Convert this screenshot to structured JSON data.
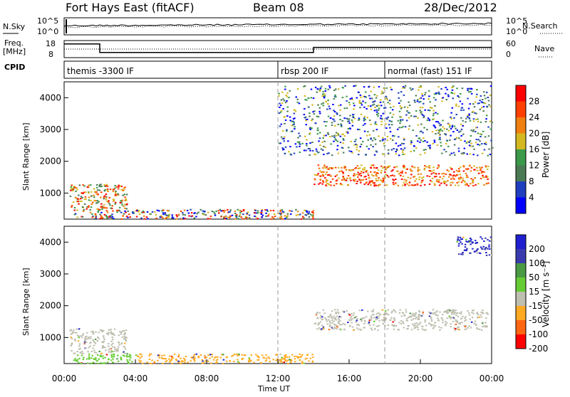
{
  "header": {
    "title": "Fort Hays East (fitACF)",
    "beam": "Beam 08",
    "date": "28/Dec/2012"
  },
  "panel_labels": {
    "nsky": "N.Sky",
    "nsearch": "N.Search",
    "freq_line1": "Freq.",
    "freq_line2": "[MHz]",
    "nave": "Nave",
    "cpid": "CPID",
    "slant_range": "Slant Range [km]",
    "time_label": "Time UT"
  },
  "noise_ticks_left": [
    "10^5",
    "10^0"
  ],
  "noise_ticks_right": [
    "10^5",
    "10^0"
  ],
  "freq_ticks_left": [
    "18",
    "8"
  ],
  "nave_ticks_right": [
    "60",
    "0"
  ],
  "cpid_segments": [
    {
      "label": "themis -3300 IF",
      "start_hour": 0
    },
    {
      "label": "rbsp 200 IF",
      "start_hour": 12
    },
    {
      "label": "normal (fast) 151 IF",
      "start_hour": 18
    }
  ],
  "time_ticks": [
    "00:00",
    "04:00",
    "08:00",
    "12:00",
    "16:00",
    "20:00",
    "00:00"
  ],
  "range_ticks": [
    "1000",
    "2000",
    "3000",
    "4000"
  ],
  "power_colorbar": {
    "title": "Power [dB]",
    "ticks": [
      "4",
      "8",
      "12",
      "16",
      "20",
      "24",
      "28"
    ],
    "colors": [
      "#0000ff",
      "#1f3fbf",
      "#4a7a54",
      "#3a9a4a",
      "#d4b820",
      "#f08010",
      "#ff4000",
      "#ff0000"
    ]
  },
  "velocity_colorbar": {
    "title": "Velocity [m s⁻¹]",
    "ticks": [
      "200",
      "100",
      "50",
      "15",
      "-15",
      "-50",
      "-100",
      "-200"
    ],
    "colors": [
      "#1f1fcf",
      "#3a3aaf",
      "#4a9a44",
      "#66cc33",
      "#bfbfb0",
      "#ffaa22",
      "#ff6611",
      "#ff0000"
    ]
  },
  "chart_data": {
    "type": "heatmap",
    "x_range_hours": [
      0,
      24
    ],
    "y_range_km": [
      180,
      4500
    ],
    "freq_steps_mhz": [
      {
        "start_hour": 0,
        "end_hour": 2,
        "freq": 16
      },
      {
        "start_hour": 2,
        "end_hour": 14,
        "freq": 11
      },
      {
        "start_hour": 14,
        "end_hour": 24,
        "freq": 14
      }
    ],
    "power_regions": [
      {
        "h0": 0.3,
        "h1": 3.5,
        "r0": 500,
        "r1": 1300,
        "level": "medium-high"
      },
      {
        "h0": 0.5,
        "h1": 14,
        "r0": 200,
        "r1": 500,
        "level": "low-high"
      },
      {
        "h0": 14,
        "h1": 23.8,
        "r0": 1250,
        "r1": 1900,
        "level": "high"
      },
      {
        "h0": 12,
        "h1": 24,
        "r0": 2200,
        "r1": 4400,
        "level": "low-medium"
      }
    ],
    "velocity_regions": [
      {
        "h0": 0.3,
        "h1": 3.5,
        "r0": 500,
        "r1": 1300,
        "band": "-15..15"
      },
      {
        "h0": 0.5,
        "h1": 4,
        "r0": 200,
        "r1": 500,
        "band": "15..50"
      },
      {
        "h0": 4,
        "h1": 14,
        "r0": 200,
        "r1": 500,
        "band": "-50..-15"
      },
      {
        "h0": 14,
        "h1": 23.8,
        "r0": 1250,
        "r1": 1900,
        "band": "-15..15"
      },
      {
        "h0": 22,
        "h1": 24,
        "r0": 3600,
        "r1": 4200,
        "band": "100..200"
      }
    ]
  }
}
